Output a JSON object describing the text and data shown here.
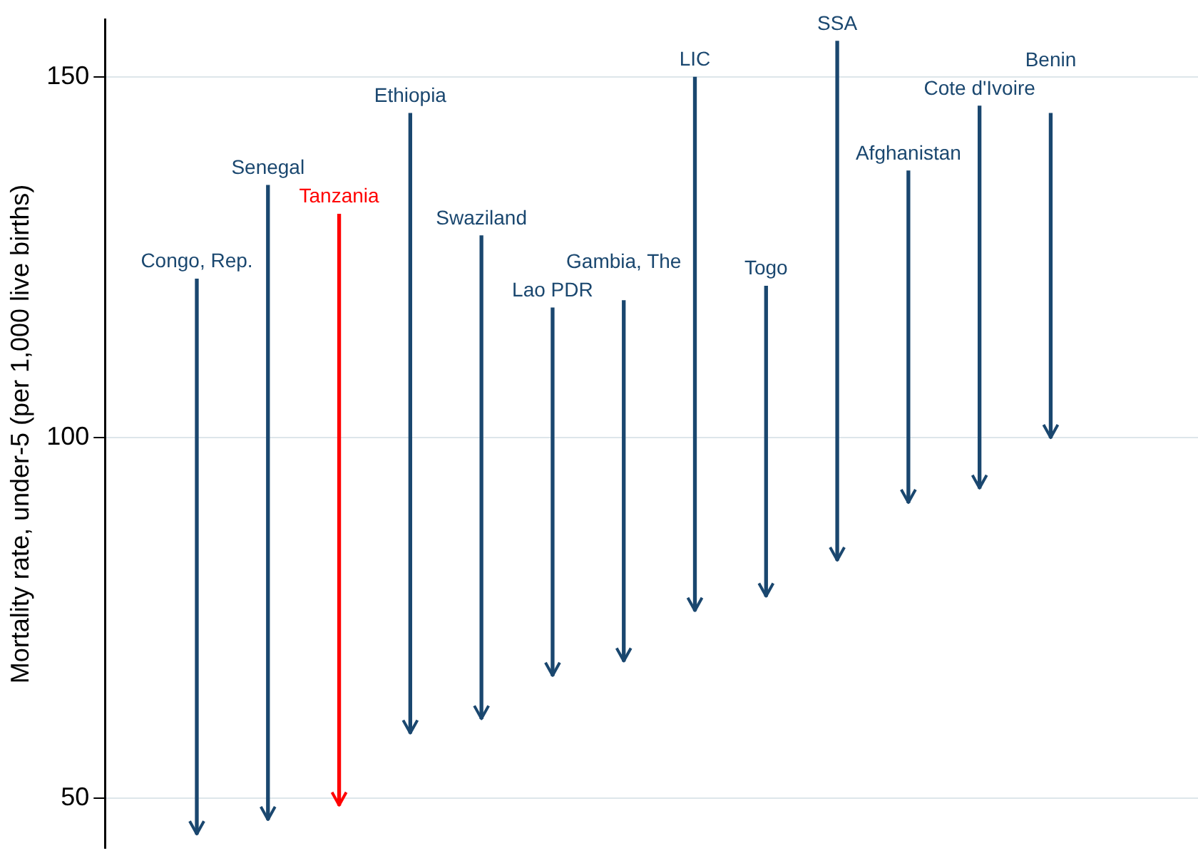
{
  "chart_data": {
    "type": "bar",
    "ylabel": "Mortality rate, under-5 (per 1,000 live births)",
    "categories": [
      "Congo, Rep.",
      "Senegal",
      "Tanzania",
      "Ethiopia",
      "Swaziland",
      "Lao PDR",
      "Gambia, The",
      "LIC",
      "Togo",
      "SSA",
      "Afghanistan",
      "Cote d'Ivoire",
      "Benin"
    ],
    "base": [
      122,
      135,
      131,
      145,
      128,
      118,
      119,
      150,
      121,
      155,
      137,
      146,
      145
    ],
    "values": [
      -77,
      -88,
      -82,
      -86,
      -67,
      -51,
      -50,
      -74,
      -43,
      -72,
      -46,
      -53,
      -45
    ],
    "colors": [
      "#1a476f",
      "#1a476f",
      "#ff0000",
      "#1a476f",
      "#1a476f",
      "#1a476f",
      "#1a476f",
      "#1a476f",
      "#1a476f",
      "#1a476f",
      "#1a476f",
      "#1a476f",
      "#1a476f"
    ],
    "ylim": [
      43,
      158
    ],
    "yticks": [
      50,
      100,
      150
    ],
    "grid": "y",
    "tick_labels": "y",
    "legend": false
  }
}
